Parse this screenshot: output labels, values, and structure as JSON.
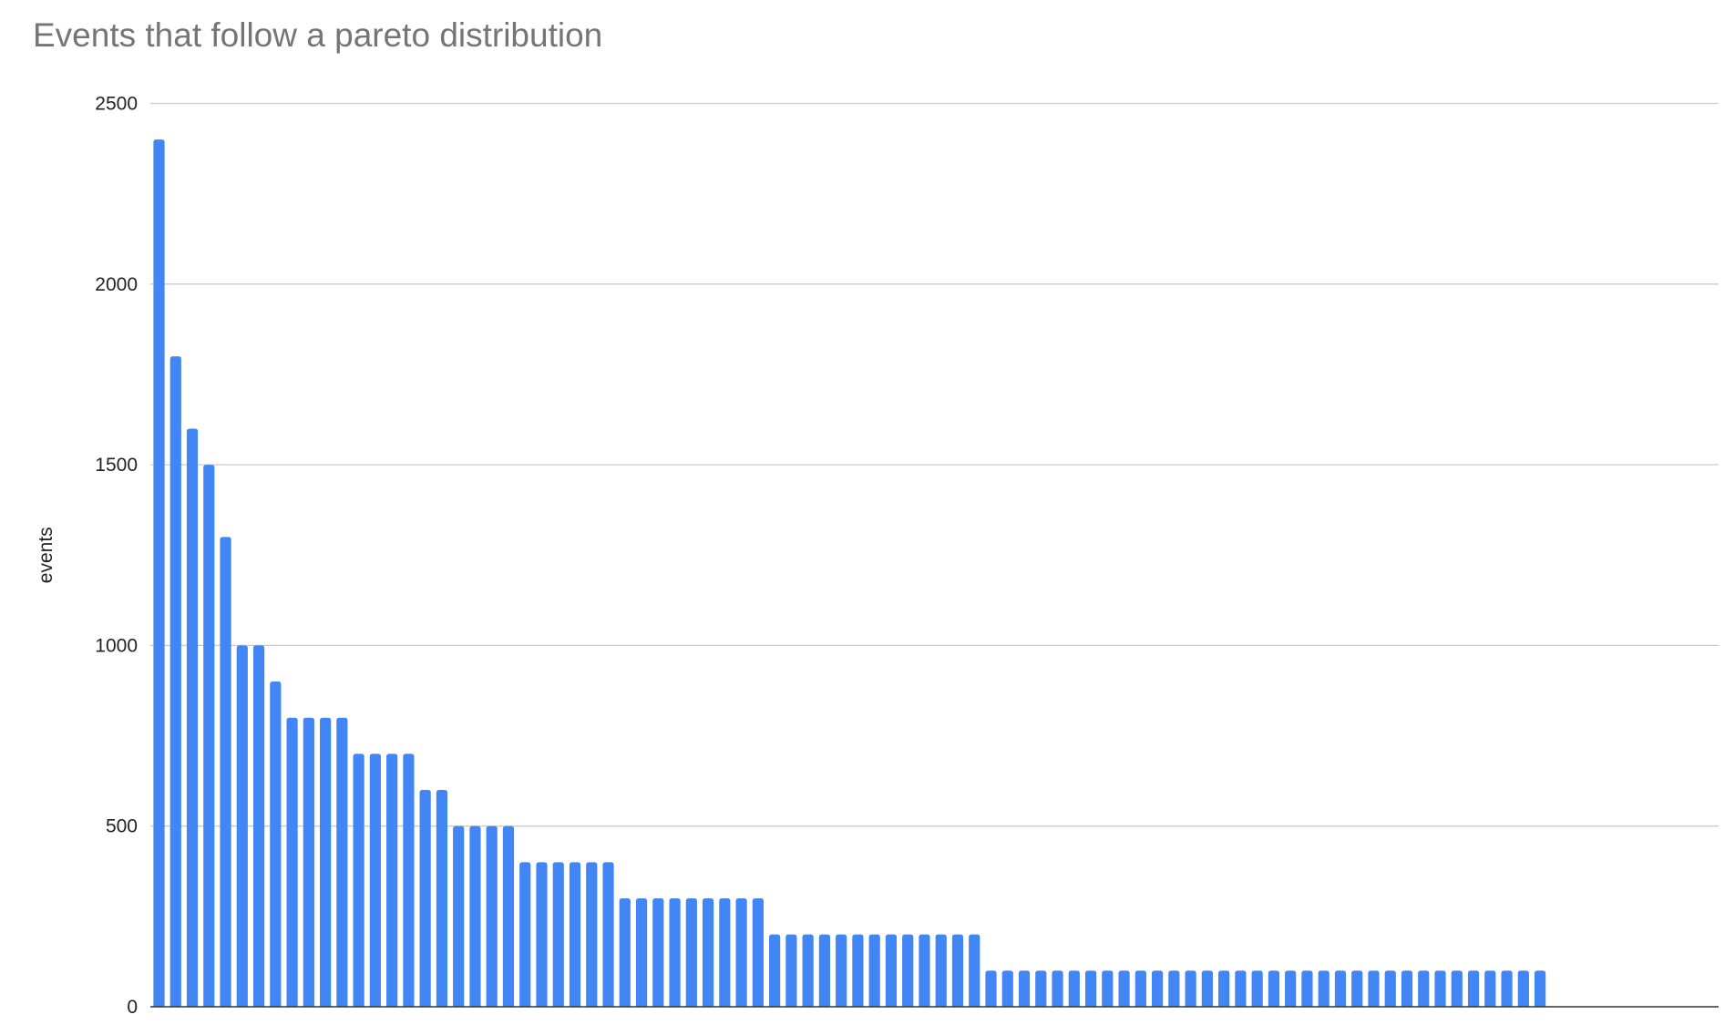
{
  "chart_data": {
    "type": "bar",
    "title": "Events that follow a pareto distribution",
    "xlabel": "",
    "ylabel": "events",
    "ylim": [
      0,
      2500
    ],
    "yticks": [
      0,
      500,
      1000,
      1500,
      2000,
      2500
    ],
    "grid": true,
    "legend": "none",
    "bar_color": "#4285f4",
    "values": [
      2400,
      1800,
      1600,
      1500,
      1300,
      1000,
      1000,
      900,
      800,
      800,
      800,
      800,
      700,
      700,
      700,
      700,
      600,
      600,
      500,
      500,
      500,
      500,
      400,
      400,
      400,
      400,
      400,
      400,
      300,
      300,
      300,
      300,
      300,
      300,
      300,
      300,
      300,
      200,
      200,
      200,
      200,
      200,
      200,
      200,
      200,
      200,
      200,
      200,
      200,
      200,
      100,
      100,
      100,
      100,
      100,
      100,
      100,
      100,
      100,
      100,
      100,
      100,
      100,
      100,
      100,
      100,
      100,
      100,
      100,
      100,
      100,
      100,
      100,
      100,
      100,
      100,
      100,
      100,
      100,
      100,
      100,
      100,
      100,
      100
    ]
  }
}
